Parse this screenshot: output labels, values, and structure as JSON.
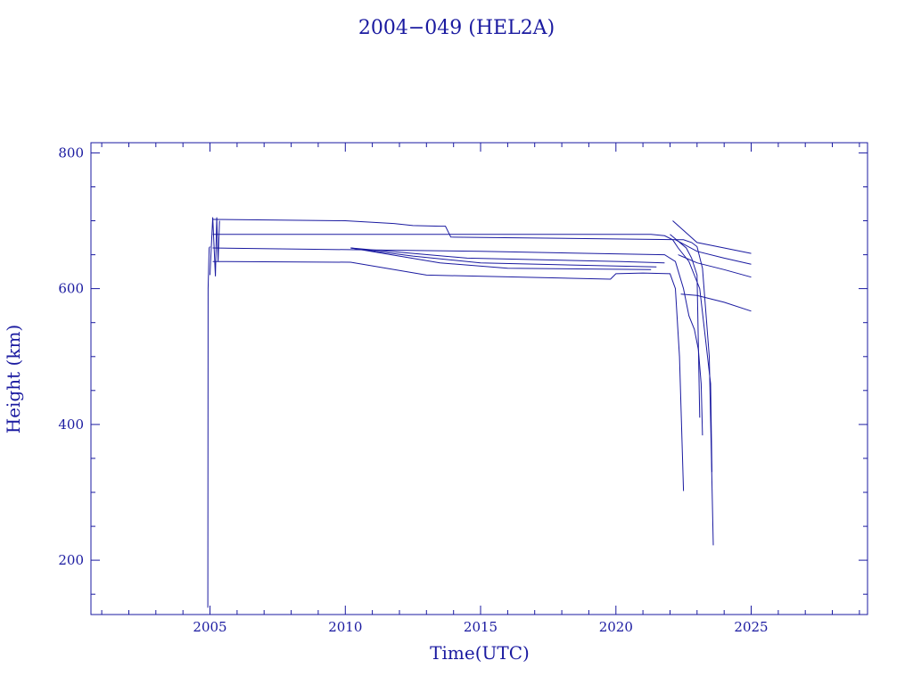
{
  "chart_data": {
    "type": "line",
    "title": "2004−049 (HEL2A)",
    "xlabel": "Time(UTC)",
    "ylabel": "Height (km)",
    "xlim": [
      2000.6,
      2029.3
    ],
    "ylim": [
      120,
      815
    ],
    "x_ticks": [
      2005,
      2010,
      2015,
      2020,
      2025
    ],
    "x_tick_labels": [
      "2005",
      "2010",
      "2015",
      "2020",
      "2025"
    ],
    "y_ticks": [
      200,
      400,
      600,
      800
    ],
    "y_tick_labels": [
      "200",
      "400",
      "600",
      "800"
    ],
    "x_minor_step": 1,
    "y_minor_step": 50,
    "grid": false,
    "color": "#1a1aa0",
    "series": [
      {
        "x": [
          2004.92,
          2004.93,
          2004.97,
          2005.0
        ],
        "y": [
          130,
          600,
          660,
          662
        ]
      },
      {
        "x": [
          2005.0,
          2005.1,
          2005.2,
          2005.25,
          2005.3,
          2005.35
        ],
        "y": [
          620,
          705,
          618,
          705,
          640,
          700
        ]
      },
      {
        "x": [
          2005.1,
          2010.0,
          2011.8,
          2012.5,
          2013.5,
          2013.7,
          2013.9,
          2022.5,
          2022.8,
          2023.0,
          2023.2,
          2023.45,
          2023.6
        ],
        "y": [
          702,
          700,
          696,
          693,
          692,
          692,
          676,
          672,
          668,
          662,
          630,
          500,
          222
        ]
      },
      {
        "x": [
          2005.1,
          2013.9,
          2021.3,
          2021.8,
          2022.1,
          2022.3,
          2022.7,
          2023.1,
          2023.5,
          2023.55
        ],
        "y": [
          680,
          680,
          680,
          678,
          672,
          660,
          640,
          600,
          460,
          330
        ]
      },
      {
        "x": [
          2005.1,
          2015.0,
          2021.8,
          2022.2,
          2022.5,
          2022.7,
          2022.9,
          2023.05,
          2023.15,
          2023.2
        ],
        "y": [
          660,
          655,
          650,
          640,
          600,
          560,
          540,
          510,
          460,
          384
        ]
      },
      {
        "x": [
          2005.1,
          2010.2,
          2013.0,
          2019.8,
          2020.0,
          2021.0,
          2022.0,
          2022.2,
          2022.35,
          2022.5
        ],
        "y": [
          640,
          639,
          620,
          614,
          622,
          623,
          622,
          600,
          500,
          302
        ]
      },
      {
        "x": [
          2010.2,
          2012.5,
          2015.0,
          2021.5
        ],
        "y": [
          660,
          648,
          638,
          632
        ]
      },
      {
        "x": [
          2010.2,
          2013.5,
          2016.0,
          2021.3
        ],
        "y": [
          660,
          638,
          630,
          628
        ]
      },
      {
        "x": [
          2010.2,
          2014.5,
          2020.2,
          2021.8
        ],
        "y": [
          660,
          645,
          640,
          638
        ]
      },
      {
        "x": [
          2022.1,
          2023.0,
          2024.0,
          2025.0
        ],
        "y": [
          700,
          668,
          660,
          652
        ]
      },
      {
        "x": [
          2022.2,
          2023.0,
          2024.0,
          2025.0
        ],
        "y": [
          672,
          655,
          645,
          636
        ]
      },
      {
        "x": [
          2022.3,
          2023.0,
          2024.0,
          2025.0
        ],
        "y": [
          650,
          638,
          628,
          617
        ]
      },
      {
        "x": [
          2022.4,
          2023.0,
          2024.0,
          2025.0
        ],
        "y": [
          592,
          590,
          580,
          567
        ]
      },
      {
        "x": [
          2022.0,
          2022.3,
          2022.6,
          2022.8,
          2023.0,
          2023.1
        ],
        "y": [
          680,
          670,
          660,
          645,
          620,
          410
        ]
      }
    ]
  }
}
